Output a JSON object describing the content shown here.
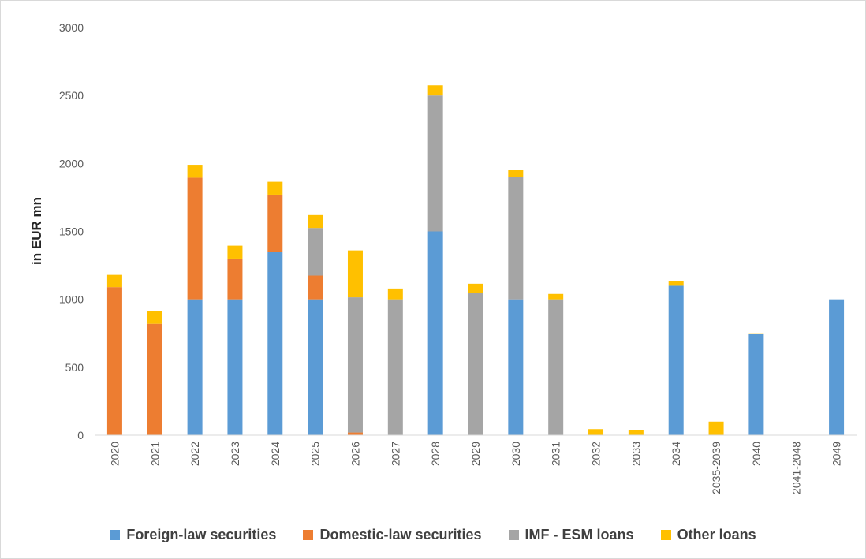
{
  "chart_data": {
    "type": "bar",
    "stacked": true,
    "ylabel": "in EUR mn",
    "ylim": [
      0,
      3000
    ],
    "yticks": [
      0,
      500,
      1000,
      1500,
      2000,
      2500,
      3000
    ],
    "grid": false,
    "legend_position": "bottom",
    "categories": [
      "2020",
      "2021",
      "2022",
      "2023",
      "2024",
      "2025",
      "2026",
      "2027",
      "2028",
      "2029",
      "2030",
      "2031",
      "2032",
      "2033",
      "2034",
      "2035-2039",
      "2040",
      "2041-2048",
      "2049"
    ],
    "series": [
      {
        "name": "Foreign-law securities",
        "color": "#5b9bd5",
        "values": [
          0,
          0,
          1000,
          1000,
          1350,
          1000,
          0,
          0,
          1500,
          0,
          1000,
          0,
          0,
          0,
          1100,
          0,
          745,
          0,
          1000
        ]
      },
      {
        "name": "Domestic-law securities",
        "color": "#ed7d31",
        "values": [
          1090,
          820,
          895,
          300,
          420,
          175,
          20,
          0,
          0,
          0,
          0,
          0,
          0,
          0,
          0,
          0,
          0,
          0,
          0
        ]
      },
      {
        "name": "IMF - ESM loans",
        "color": "#a5a5a5",
        "values": [
          0,
          0,
          0,
          0,
          0,
          350,
          995,
          1000,
          1000,
          1050,
          900,
          1000,
          0,
          0,
          0,
          0,
          0,
          0,
          0
        ]
      },
      {
        "name": "Other loans",
        "color": "#ffc000",
        "values": [
          90,
          95,
          95,
          95,
          95,
          95,
          345,
          80,
          75,
          65,
          50,
          40,
          45,
          40,
          35,
          100,
          5,
          0,
          0
        ]
      }
    ]
  }
}
